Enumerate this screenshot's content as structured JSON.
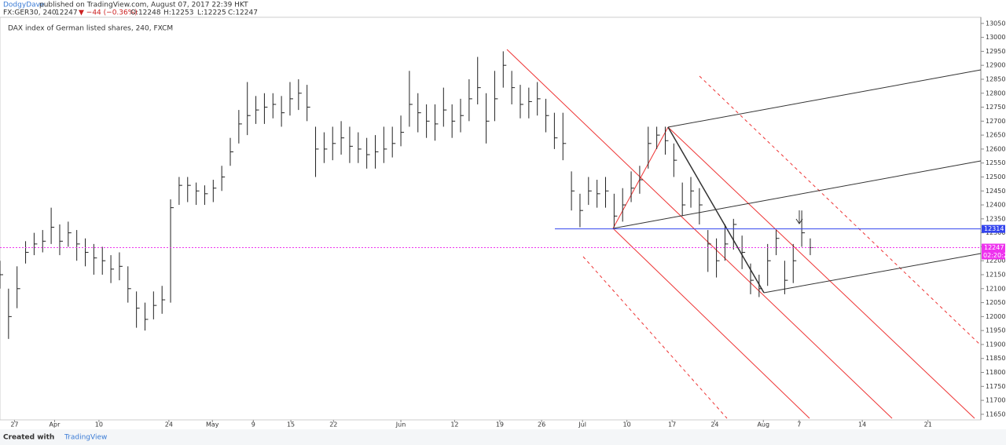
{
  "header": {
    "author": "DodgyDave",
    "published": "published on TradingView.com, August 07, 2017 22:39 HKT",
    "symbol": "FX:GER30, 240",
    "last": "12247",
    "change": "▼ −44 (−0.36%)",
    "open": "O:12248",
    "high": "H:12253",
    "low": "L:12225",
    "close": "C:12247"
  },
  "footer": {
    "created": "Created with",
    "brand": "TradingView"
  },
  "chart_data": {
    "type": "ohlc",
    "title": "DAX index of German listed shares, 240, FXCM",
    "color": "#222222",
    "x": [
      0,
      1,
      2,
      3,
      4,
      5,
      6,
      7,
      8,
      9,
      10,
      11,
      12,
      13,
      14,
      15,
      16,
      17,
      18,
      19,
      20,
      21,
      22,
      23,
      24,
      25,
      26,
      27,
      28,
      29,
      30,
      31,
      32,
      33,
      34,
      35,
      36,
      37,
      38,
      39,
      40,
      41,
      42,
      43,
      44,
      45,
      46,
      47,
      48,
      49,
      50,
      51,
      52,
      53,
      54,
      55,
      56,
      57,
      58,
      59,
      60,
      61,
      62,
      63,
      64,
      65,
      66,
      67,
      68,
      69,
      70,
      71,
      72,
      73,
      74,
      75,
      76,
      77,
      78,
      79,
      80,
      81,
      82,
      83,
      84,
      85,
      86,
      87,
      88,
      89,
      90,
      91,
      92,
      93,
      94,
      95
    ],
    "high": [
      12200,
      12100,
      12180,
      12270,
      12300,
      12310,
      12390,
      12330,
      12340,
      12310,
      12280,
      12260,
      12250,
      12220,
      12230,
      12180,
      12090,
      12050,
      12090,
      12110,
      12420,
      12500,
      12500,
      12480,
      12470,
      12490,
      12540,
      12640,
      12740,
      12840,
      12790,
      12800,
      12800,
      12790,
      12840,
      12850,
      12830,
      12680,
      12660,
      12680,
      12700,
      12680,
      12660,
      12640,
      12650,
      12680,
      12680,
      12720,
      12880,
      12800,
      12760,
      12760,
      12820,
      12760,
      12780,
      12850,
      12930,
      12800,
      12880,
      12950,
      12880,
      12830,
      12820,
      12840,
      12780,
      12730,
      12730,
      12520,
      12440,
      12500,
      12490,
      12500,
      12440,
      12460,
      12520,
      12540,
      12680,
      12680,
      12680,
      12620,
      12480,
      12500,
      12460,
      12310,
      12280,
      12330,
      12350,
      12290,
      12190,
      12150,
      12260,
      12310,
      12200,
      12260,
      12380,
      12280
    ],
    "low": [
      12100,
      11920,
      12030,
      12190,
      12220,
      12230,
      12260,
      12220,
      12250,
      12200,
      12180,
      12150,
      12150,
      12120,
      12130,
      12050,
      11960,
      11950,
      11990,
      12010,
      12050,
      12400,
      12410,
      12400,
      12400,
      12410,
      12450,
      12540,
      12620,
      12650,
      12690,
      12690,
      12710,
      12680,
      12720,
      12740,
      12700,
      12500,
      12550,
      12560,
      12580,
      12550,
      12550,
      12530,
      12530,
      12550,
      12570,
      12610,
      12680,
      12660,
      12640,
      12630,
      12680,
      12640,
      12660,
      12700,
      12760,
      12620,
      12700,
      12820,
      12760,
      12710,
      12710,
      12720,
      12660,
      12600,
      12560,
      12380,
      12320,
      12400,
      12390,
      12390,
      12320,
      12340,
      12410,
      12440,
      12530,
      12600,
      12580,
      12500,
      12360,
      12390,
      12330,
      12160,
      12140,
      12200,
      12240,
      12170,
      12080,
      12070,
      12110,
      12220,
      12080,
      12120,
      12250,
      12220
    ],
    "close": [
      12150,
      12000,
      12100,
      12230,
      12260,
      12270,
      12320,
      12270,
      12300,
      12260,
      12230,
      12210,
      12200,
      12170,
      12180,
      12100,
      12030,
      11990,
      12040,
      12060,
      12390,
      12470,
      12470,
      12450,
      12440,
      12460,
      12500,
      12590,
      12690,
      12720,
      12740,
      12750,
      12760,
      12730,
      12780,
      12800,
      12750,
      12600,
      12600,
      12620,
      12640,
      12610,
      12600,
      12580,
      12590,
      12600,
      12620,
      12660,
      12760,
      12730,
      12700,
      12690,
      12740,
      12700,
      12720,
      12780,
      12820,
      12700,
      12780,
      12900,
      12820,
      12760,
      12770,
      12780,
      12720,
      12640,
      12620,
      12450,
      12380,
      12450,
      12440,
      12450,
      12360,
      12400,
      12460,
      12490,
      12620,
      12650,
      12630,
      12560,
      12400,
      12450,
      12400,
      12260,
      12200,
      12260,
      12330,
      12230,
      12130,
      12100,
      12200,
      12280,
      12130,
      12200,
      12300,
      12247
    ],
    "xlim": [
      0,
      115
    ],
    "xticks": [
      {
        "value": 1.7,
        "label": "27"
      },
      {
        "value": 6.4,
        "label": "Apr"
      },
      {
        "value": 11.6,
        "label": "10"
      },
      {
        "value": 19.8,
        "label": "24"
      },
      {
        "value": 24.9,
        "label": "May"
      },
      {
        "value": 29.7,
        "label": "9"
      },
      {
        "value": 34.1,
        "label": "15"
      },
      {
        "value": 39.1,
        "label": "22"
      },
      {
        "value": 47,
        "label": "Jun"
      },
      {
        "value": 53.3,
        "label": "12"
      },
      {
        "value": 58.6,
        "label": "19"
      },
      {
        "value": 63.5,
        "label": "26"
      },
      {
        "value": 68.3,
        "label": "Jul"
      },
      {
        "value": 73.5,
        "label": "10"
      },
      {
        "value": 78.8,
        "label": "17"
      },
      {
        "value": 83.8,
        "label": "24"
      },
      {
        "value": 89.5,
        "label": "Aug"
      },
      {
        "value": 93.7,
        "label": "7"
      },
      {
        "value": 101.1,
        "label": "14"
      },
      {
        "value": 108.8,
        "label": "21"
      }
    ],
    "ylim": [
      11630,
      13072
    ],
    "yticks": [
      11650,
      11700,
      11750,
      11800,
      11850,
      11900,
      11950,
      12000,
      12050,
      12100,
      12150,
      12200,
      12250,
      12300,
      12350,
      12400,
      12450,
      12500,
      12550,
      12600,
      12650,
      12700,
      12750,
      12800,
      12850,
      12900,
      12950,
      13000,
      13050
    ],
    "price_lines": [
      {
        "value": 12314,
        "color": "#3344ee"
      },
      {
        "value": 12247,
        "color": "#ee33ee",
        "countdown": "02:20:2"
      }
    ]
  }
}
